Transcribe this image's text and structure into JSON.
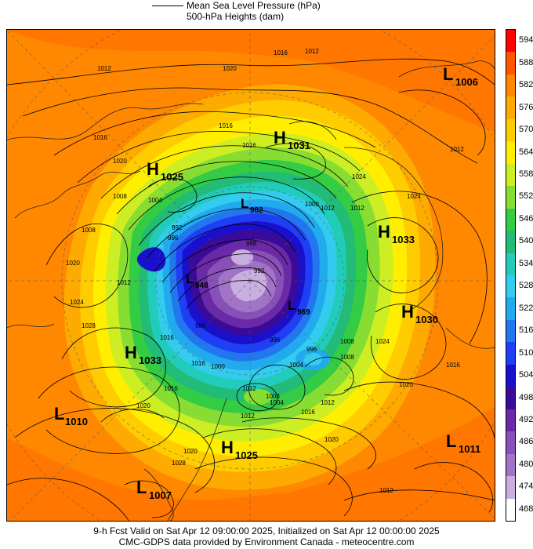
{
  "legend": {
    "pressure_label": "Mean Sea Level Pressure (hPa)",
    "heights_label": "500-hPa Heights (dam)"
  },
  "colorbar": {
    "levels": [
      {
        "label": "594",
        "color": "#ff0000"
      },
      {
        "label": "588",
        "color": "#ff5500"
      },
      {
        "label": "582",
        "color": "#ff8800"
      },
      {
        "label": "576",
        "color": "#ffaa00"
      },
      {
        "label": "570",
        "color": "#ffcc00"
      },
      {
        "label": "564",
        "color": "#ffee00"
      },
      {
        "label": "558",
        "color": "#ccee22"
      },
      {
        "label": "552",
        "color": "#88dd33"
      },
      {
        "label": "546",
        "color": "#33cc44"
      },
      {
        "label": "540",
        "color": "#22bb77"
      },
      {
        "label": "534",
        "color": "#22ccbb"
      },
      {
        "label": "528",
        "color": "#33ccee"
      },
      {
        "label": "522",
        "color": "#22aaee"
      },
      {
        "label": "516",
        "color": "#2277ee"
      },
      {
        "label": "510",
        "color": "#1f3ff5"
      },
      {
        "label": "504",
        "color": "#1a10cc"
      },
      {
        "label": "498",
        "color": "#3a0a99"
      },
      {
        "label": "492",
        "color": "#6a2aa8"
      },
      {
        "label": "486",
        "color": "#8850b8"
      },
      {
        "label": "480",
        "color": "#a274c8"
      },
      {
        "label": "474",
        "color": "#c9aee0"
      },
      {
        "label": "468",
        "color": "#ffffff"
      }
    ]
  },
  "systems": [
    {
      "type": "H",
      "value": "1031"
    },
    {
      "type": "H",
      "value": "1025"
    },
    {
      "type": "L",
      "value": "1006"
    },
    {
      "type": "H",
      "value": "1033"
    },
    {
      "type": "H",
      "value": "1030"
    },
    {
      "type": "H",
      "value": "1033"
    },
    {
      "type": "L",
      "value": "1010"
    },
    {
      "type": "H",
      "value": "1025"
    },
    {
      "type": "L",
      "value": "1011"
    },
    {
      "type": "L",
      "value": "1007"
    },
    {
      "type": "L",
      "value": "948"
    },
    {
      "type": "L",
      "value": "969"
    },
    {
      "type": "L",
      "value": "982"
    }
  ],
  "isobar_labels": [
    "1012",
    "1016",
    "1020",
    "1016",
    "1012",
    "1020",
    "1024",
    "1016",
    "1008",
    "1004",
    "1000",
    "996",
    "992",
    "988",
    "1012",
    "1016",
    "1020",
    "1024",
    "1028",
    "1008",
    "1016",
    "1012",
    "1016",
    "1020",
    "1024",
    "1020",
    "1016",
    "1012",
    "1012",
    "1008",
    "1004",
    "996",
    "1012",
    "1020",
    "1016",
    "1012",
    "1008",
    "1012",
    "1004",
    "1000",
    "996",
    "1028",
    "1024",
    "1020",
    "1016",
    "1012",
    "984",
    "992",
    "1008"
  ],
  "footer": {
    "line1": "9-h Fcst Valid on Sat Apr 12 09:00:00 2025, Initialized on Sat Apr 12 00:00:00 2025",
    "line2": "CMC-GDPS data provided by Environment Canada - meteocentre.com"
  }
}
